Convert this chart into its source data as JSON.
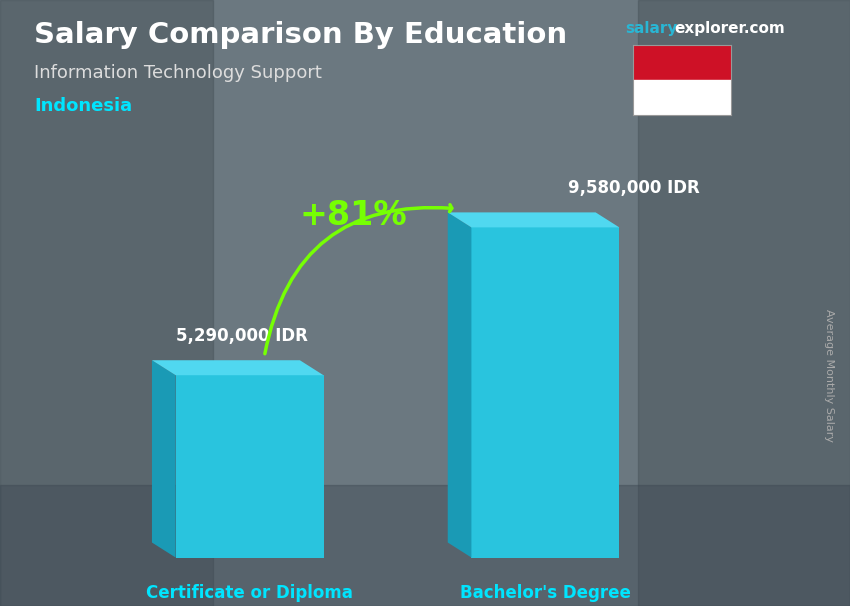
{
  "title": "Salary Comparison By Education",
  "subtitle": "Information Technology Support",
  "country": "Indonesia",
  "website_salary": "salary",
  "website_explorer": "explorer.com",
  "categories": [
    "Certificate or Diploma",
    "Bachelor's Degree"
  ],
  "values": [
    5290000,
    9580000
  ],
  "value_labels": [
    "5,290,000 IDR",
    "9,580,000 IDR"
  ],
  "percent_change": "+81%",
  "bar_front_color": "#29c4de",
  "bar_left_color": "#1a9ab5",
  "bar_top_color": "#50d8f0",
  "cat_label_color": "#00e5ff",
  "title_color": "#ffffff",
  "subtitle_color": "#dddddd",
  "country_color": "#00e5ff",
  "percent_color": "#76ff03",
  "arrow_color": "#76ff03",
  "bg_color": "#7a8a95",
  "overlay_color": "#4a5a65",
  "ylabel": "Average Monthly Salary",
  "flag_red": "#CE1126",
  "flag_white": "#ffffff",
  "website_salary_color": "#29b6d4",
  "website_explorer_color": "#ffffff"
}
